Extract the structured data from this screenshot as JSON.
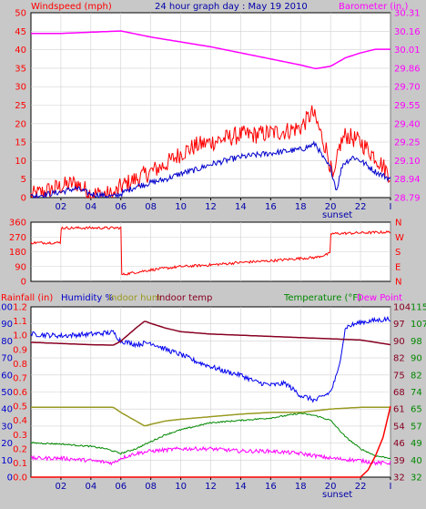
{
  "chart_data": [
    {
      "type": "line",
      "title": "24 hour graph day : May 19 2010",
      "left_label": "Windspeed (mph)",
      "right_label": "Barometer (in.)",
      "x_ticks": [
        "02",
        "04",
        "06",
        "08",
        "10",
        "12",
        "14",
        "16",
        "18",
        "20",
        "22",
        "I"
      ],
      "x_annotation": "sunset",
      "left_ticks": [
        "0",
        "5",
        "10",
        "15",
        "20",
        "25",
        "30",
        "35",
        "40",
        "45",
        "50"
      ],
      "right_ticks": [
        "28.79",
        "28.94",
        "29.10",
        "29.25",
        "29.40",
        "29.55",
        "29.70",
        "29.86",
        "30.01",
        "30.16",
        "30.31"
      ],
      "ylim_left": [
        0,
        50
      ],
      "ylim_right": [
        28.79,
        30.31
      ],
      "x_range": [
        0,
        24
      ],
      "series": [
        {
          "name": "Barometer",
          "axis": "right",
          "color": "#ff00ff",
          "style": "smooth",
          "points": [
            [
              0,
              30.14
            ],
            [
              2,
              30.14
            ],
            [
              4,
              30.15
            ],
            [
              6,
              30.16
            ],
            [
              8,
              30.11
            ],
            [
              10,
              30.07
            ],
            [
              12,
              30.03
            ],
            [
              14,
              29.98
            ],
            [
              16,
              29.93
            ],
            [
              18,
              29.88
            ],
            [
              19,
              29.85
            ],
            [
              20,
              29.87
            ],
            [
              21,
              29.94
            ],
            [
              22,
              29.98
            ],
            [
              23,
              30.01
            ],
            [
              24,
              30.01
            ]
          ]
        },
        {
          "name": "Wind gust",
          "axis": "left",
          "color": "#ff0000",
          "style": "noisy",
          "noise": 2.5,
          "points": [
            [
              0,
              0.5
            ],
            [
              2,
              3
            ],
            [
              3,
              4
            ],
            [
              4,
              1
            ],
            [
              5,
              1
            ],
            [
              5.5,
              0.5
            ],
            [
              6,
              3
            ],
            [
              7,
              5
            ],
            [
              8,
              7
            ],
            [
              9,
              9
            ],
            [
              10,
              12
            ],
            [
              11,
              14
            ],
            [
              12,
              15
            ],
            [
              13,
              16
            ],
            [
              14,
              17
            ],
            [
              15,
              17
            ],
            [
              16,
              17.5
            ],
            [
              17,
              18
            ],
            [
              18,
              19
            ],
            [
              18.8,
              23
            ],
            [
              19.2,
              19
            ],
            [
              19.8,
              12
            ],
            [
              20.2,
              4
            ],
            [
              20.6,
              14
            ],
            [
              21,
              17
            ],
            [
              22,
              15
            ],
            [
              23,
              11
            ],
            [
              24,
              6
            ]
          ]
        },
        {
          "name": "Wind avg",
          "axis": "left",
          "color": "#0000cc",
          "style": "noisy",
          "noise": 0.8,
          "points": [
            [
              0,
              0.3
            ],
            [
              2,
              1.5
            ],
            [
              3,
              2.5
            ],
            [
              4,
              1
            ],
            [
              5,
              0.5
            ],
            [
              5.5,
              0.3
            ],
            [
              6,
              1
            ],
            [
              7,
              3
            ],
            [
              8,
              4
            ],
            [
              9,
              5
            ],
            [
              10,
              6.5
            ],
            [
              11,
              7.5
            ],
            [
              12,
              9
            ],
            [
              13,
              10
            ],
            [
              14,
              11
            ],
            [
              15,
              11.5
            ],
            [
              16,
              12
            ],
            [
              17,
              12.5
            ],
            [
              18,
              13
            ],
            [
              19,
              14.5
            ],
            [
              19.6,
              10
            ],
            [
              20,
              8
            ],
            [
              20.4,
              2
            ],
            [
              20.8,
              9
            ],
            [
              21.5,
              11
            ],
            [
              22,
              10
            ],
            [
              23,
              7
            ],
            [
              24,
              5
            ]
          ]
        }
      ]
    },
    {
      "type": "line",
      "title": "",
      "left_ticks": [
        "0",
        "90",
        "180",
        "270",
        "360"
      ],
      "right_ticks": [
        "N",
        "E",
        "S",
        "W",
        "N"
      ],
      "ylim_left": [
        0,
        360
      ],
      "x_range": [
        0,
        24
      ],
      "series": [
        {
          "name": "Wind direction",
          "axis": "left",
          "color": "#ff0000",
          "style": "noisy",
          "noise": 8,
          "points": [
            [
              0,
              235
            ],
            [
              2,
              235
            ],
            [
              2.01,
              325
            ],
            [
              6,
              325
            ],
            [
              6.01,
              40
            ],
            [
              7,
              55
            ],
            [
              8,
              70
            ],
            [
              10,
              90
            ],
            [
              12,
              100
            ],
            [
              14,
              115
            ],
            [
              16,
              125
            ],
            [
              18,
              140
            ],
            [
              19,
              145
            ],
            [
              20,
              170
            ],
            [
              20.01,
              290
            ],
            [
              22,
              295
            ],
            [
              24,
              300
            ]
          ]
        }
      ]
    },
    {
      "type": "line",
      "title": "",
      "left_labels": [
        "Rainfall (in)",
        "Humidity %",
        "Indoor hum",
        "Indoor temp"
      ],
      "right_labels": [
        "Temperature (°F)",
        "Dew Point"
      ],
      "x_ticks": [
        "02",
        "04",
        "06",
        "08",
        "10",
        "12",
        "14",
        "16",
        "18",
        "20",
        "22",
        "I"
      ],
      "x_annotation": "sunset",
      "rain_ticks": [
        "0.0",
        "0.1",
        "0.2",
        "0.3",
        "0.4",
        "0.5",
        "0.6",
        "0.7",
        "0.8",
        "0.9",
        "1.0",
        "1.1",
        "1.2"
      ],
      "humidity_ticks": [
        "0",
        "10",
        "20",
        "30",
        "40",
        "50",
        "60",
        "70",
        "80",
        "90",
        "100"
      ],
      "temp_ticks_outer": [
        "32",
        "39",
        "46",
        "54",
        "61",
        "68",
        "75",
        "82",
        "90",
        "97",
        "104"
      ],
      "temp_ticks_inner": [
        "32",
        "40",
        "49",
        "57",
        "65",
        "74",
        "82",
        "90",
        "98",
        "107",
        "115"
      ],
      "ylim_humidity": [
        0,
        100
      ],
      "ylim_rain": [
        0,
        1.2
      ],
      "ylim_temp": [
        32,
        104
      ],
      "x_range": [
        0,
        24
      ],
      "series": [
        {
          "name": "Humidity %",
          "axis": "humidity",
          "color": "#0000ee",
          "style": "noisy",
          "noise": 1.5,
          "points": [
            [
              0,
              84
            ],
            [
              2,
              83
            ],
            [
              4,
              84
            ],
            [
              5.5,
              85
            ],
            [
              6,
              80
            ],
            [
              7,
              78
            ],
            [
              8,
              79
            ],
            [
              9,
              75
            ],
            [
              10,
              72
            ],
            [
              11,
              68
            ],
            [
              12,
              65
            ],
            [
              13,
              62
            ],
            [
              14,
              60
            ],
            [
              15,
              56
            ],
            [
              16,
              54
            ],
            [
              17,
              55
            ],
            [
              18,
              48
            ],
            [
              19,
              45
            ],
            [
              20,
              50
            ],
            [
              20.5,
              62
            ],
            [
              21,
              88
            ],
            [
              22,
              91
            ],
            [
              23,
              92
            ],
            [
              24,
              93
            ]
          ]
        },
        {
          "name": "Indoor temp",
          "axis": "temp",
          "color": "#880022",
          "style": "smooth",
          "points": [
            [
              0,
              89
            ],
            [
              2,
              88.5
            ],
            [
              4,
              88
            ],
            [
              5.5,
              87.8
            ],
            [
              6,
              89.5
            ],
            [
              7,
              95
            ],
            [
              7.6,
              98
            ],
            [
              8,
              97
            ],
            [
              9,
              95
            ],
            [
              10,
              93.5
            ],
            [
              12,
              92.5
            ],
            [
              14,
              92
            ],
            [
              16,
              91.5
            ],
            [
              18,
              91
            ],
            [
              20,
              90.5
            ],
            [
              22,
              90
            ],
            [
              24,
              88
            ]
          ]
        },
        {
          "name": "Indoor hum",
          "axis": "humidity",
          "color": "#999922",
          "style": "smooth",
          "points": [
            [
              0,
              41
            ],
            [
              2,
              41
            ],
            [
              4,
              41
            ],
            [
              5.5,
              41
            ],
            [
              6,
              38
            ],
            [
              7,
              33
            ],
            [
              7.6,
              30
            ],
            [
              8,
              31
            ],
            [
              9,
              33
            ],
            [
              10,
              34
            ],
            [
              12,
              35.5
            ],
            [
              14,
              37
            ],
            [
              16,
              38
            ],
            [
              18,
              38
            ],
            [
              20,
              40
            ],
            [
              22,
              41
            ],
            [
              24,
              41
            ]
          ]
        },
        {
          "name": "Temperature (°F)",
          "axis": "temp",
          "color": "#008800",
          "style": "noisy",
          "noise": 0.3,
          "points": [
            [
              0,
              46.5
            ],
            [
              2,
              46
            ],
            [
              4,
              45
            ],
            [
              5,
              44
            ],
            [
              6,
              42
            ],
            [
              7,
              44
            ],
            [
              8,
              47
            ],
            [
              9,
              50
            ],
            [
              10,
              52
            ],
            [
              12,
              55
            ],
            [
              14,
              56
            ],
            [
              16,
              57
            ],
            [
              18,
              59
            ],
            [
              19,
              58
            ],
            [
              20,
              56
            ],
            [
              21,
              49
            ],
            [
              22,
              44
            ],
            [
              23,
              41
            ],
            [
              24,
              40
            ]
          ]
        },
        {
          "name": "Dew Point",
          "axis": "temp",
          "color": "#ff00ff",
          "style": "noisy",
          "noise": 0.8,
          "points": [
            [
              0,
              40
            ],
            [
              2,
              40
            ],
            [
              4,
              39
            ],
            [
              5.5,
              38
            ],
            [
              6,
              40
            ],
            [
              7,
              42
            ],
            [
              8,
              43
            ],
            [
              10,
              44
            ],
            [
              12,
              44
            ],
            [
              14,
              43
            ],
            [
              16,
              43
            ],
            [
              18,
              42
            ],
            [
              19,
              41
            ],
            [
              20,
              40
            ],
            [
              22,
              39
            ],
            [
              23,
              38
            ],
            [
              24,
              38
            ]
          ]
        },
        {
          "name": "Rainfall (in)",
          "axis": "rain",
          "color": "#ff0000",
          "style": "line",
          "points": [
            [
              0,
              0
            ],
            [
              22,
              0
            ],
            [
              22.5,
              0.05
            ],
            [
              23,
              0.15
            ],
            [
              23.5,
              0.28
            ],
            [
              24,
              0.5
            ]
          ]
        }
      ]
    }
  ],
  "colors": {
    "bg": "#c8c8c8",
    "plot_bg": "#ffffff",
    "red": "#ff0000",
    "magenta": "#ff00ff",
    "blue": "#0000cc",
    "green": "#008800",
    "olive": "#999922",
    "maroon": "#880022",
    "navy": "#0000aa"
  }
}
